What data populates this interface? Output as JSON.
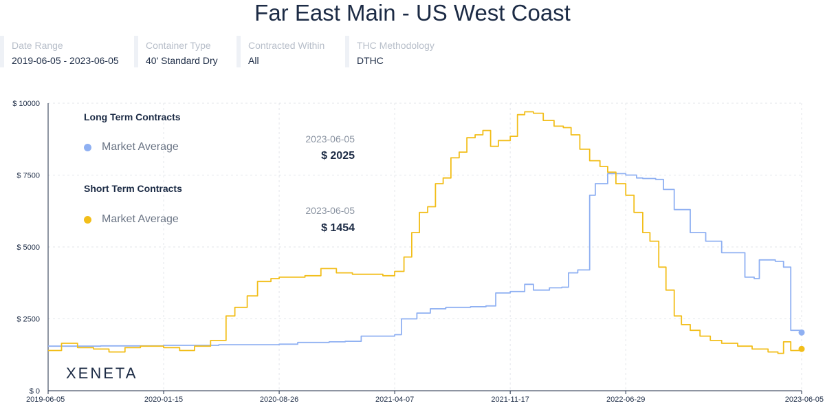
{
  "title": "Far East Main  - US West Coast",
  "filters": [
    {
      "label": "Date Range",
      "value": "2019-06-05 - 2023-06-05"
    },
    {
      "label": "Container Type",
      "value": "40' Standard Dry"
    },
    {
      "label": "Contracted Within",
      "value": "All"
    },
    {
      "label": "THC Methodology",
      "value": "DTHC"
    }
  ],
  "legend": {
    "long_term_title": "Long Term Contracts",
    "long_term_item": "Market Average",
    "long_term_date": "2023-06-05",
    "long_term_value": "$ 2025",
    "short_term_title": "Short Term Contracts",
    "short_term_item": "Market Average",
    "short_term_date": "2023-06-05",
    "short_term_value": "$ 1454"
  },
  "brand": "XENETA",
  "colors": {
    "long_term": "#8fb0f2",
    "short_term": "#f2be1a",
    "text": "#1c2b45"
  },
  "chart_data": {
    "type": "line",
    "x_ticks": [
      "2019-06-05",
      "2020-01-15",
      "2020-08-26",
      "2021-04-07",
      "2021-11-17",
      "2022-06-29",
      "2023-06-05"
    ],
    "y_ticks": [
      "$ 0",
      "$ 2500",
      "$ 5000",
      "$ 7500",
      "$ 10000"
    ],
    "xlim": [
      "2019-06-05",
      "2023-06-05"
    ],
    "ylim": [
      0,
      10000
    ],
    "grid": true,
    "series": [
      {
        "name": "Long Term Contracts - Market Average",
        "color": "#8fb0f2",
        "x": [
          "2019-06-05",
          "2019-09-15",
          "2020-01-15",
          "2020-05-01",
          "2020-08-26",
          "2020-10-01",
          "2020-12-01",
          "2021-01-01",
          "2021-02-01",
          "2021-04-07",
          "2021-04-20",
          "2021-05-20",
          "2021-06-15",
          "2021-07-15",
          "2021-09-01",
          "2021-10-01",
          "2021-10-20",
          "2021-11-17",
          "2021-12-15",
          "2022-01-01",
          "2022-02-01",
          "2022-02-25",
          "2022-03-10",
          "2022-03-28",
          "2022-04-20",
          "2022-05-01",
          "2022-05-25",
          "2022-06-29",
          "2022-07-20",
          "2022-08-01",
          "2022-08-26",
          "2022-09-10",
          "2022-10-01",
          "2022-11-01",
          "2022-12-01",
          "2023-01-01",
          "2023-02-15",
          "2023-03-05",
          "2023-03-15",
          "2023-04-15",
          "2023-05-01",
          "2023-05-15",
          "2023-06-05"
        ],
        "y": [
          1550,
          1560,
          1580,
          1600,
          1620,
          1680,
          1700,
          1720,
          1900,
          1950,
          2500,
          2700,
          2850,
          2900,
          2920,
          2950,
          3400,
          3450,
          3700,
          3500,
          3580,
          3600,
          4100,
          4200,
          6800,
          7200,
          7550,
          7500,
          7400,
          7380,
          7350,
          7000,
          6300,
          5500,
          5200,
          4800,
          3950,
          3900,
          4550,
          4500,
          4300,
          2100,
          2025
        ]
      },
      {
        "name": "Short Term Contracts - Market Average",
        "color": "#f2be1a",
        "x": [
          "2019-06-05",
          "2019-07-01",
          "2019-08-01",
          "2019-09-01",
          "2019-10-01",
          "2019-11-01",
          "2019-12-01",
          "2020-01-15",
          "2020-02-15",
          "2020-03-15",
          "2020-04-15",
          "2020-05-15",
          "2020-06-01",
          "2020-06-25",
          "2020-07-15",
          "2020-08-10",
          "2020-08-26",
          "2020-09-15",
          "2020-10-15",
          "2020-11-15",
          "2020-12-15",
          "2021-01-15",
          "2021-02-15",
          "2021-03-15",
          "2021-04-07",
          "2021-04-25",
          "2021-05-10",
          "2021-05-25",
          "2021-06-10",
          "2021-06-25",
          "2021-07-10",
          "2021-07-25",
          "2021-08-10",
          "2021-08-25",
          "2021-09-10",
          "2021-09-25",
          "2021-10-10",
          "2021-10-25",
          "2021-11-17",
          "2021-12-01",
          "2021-12-15",
          "2022-01-01",
          "2022-01-20",
          "2022-02-10",
          "2022-02-28",
          "2022-03-15",
          "2022-04-01",
          "2022-04-20",
          "2022-05-10",
          "2022-05-25",
          "2022-06-10",
          "2022-06-29",
          "2022-07-15",
          "2022-08-01",
          "2022-08-15",
          "2022-09-01",
          "2022-09-15",
          "2022-10-01",
          "2022-10-15",
          "2022-11-01",
          "2022-11-20",
          "2022-12-10",
          "2023-01-01",
          "2023-02-01",
          "2023-03-01",
          "2023-04-01",
          "2023-04-20",
          "2023-05-01",
          "2023-05-15",
          "2023-06-05"
        ],
        "y": [
          1400,
          1650,
          1500,
          1450,
          1350,
          1500,
          1550,
          1500,
          1400,
          1550,
          1750,
          2600,
          2900,
          3300,
          3800,
          3900,
          3950,
          3950,
          4000,
          4250,
          4100,
          4050,
          4050,
          4000,
          4150,
          4650,
          5500,
          6200,
          6400,
          7200,
          7400,
          8100,
          8300,
          8800,
          8900,
          9050,
          8500,
          8700,
          8850,
          9600,
          9700,
          9650,
          9400,
          9200,
          9150,
          8900,
          8400,
          8000,
          7800,
          7600,
          7200,
          6800,
          6200,
          5500,
          5200,
          4300,
          3500,
          2600,
          2300,
          2100,
          1900,
          1750,
          1650,
          1550,
          1450,
          1350,
          1300,
          1700,
          1400,
          1454
        ]
      }
    ]
  }
}
